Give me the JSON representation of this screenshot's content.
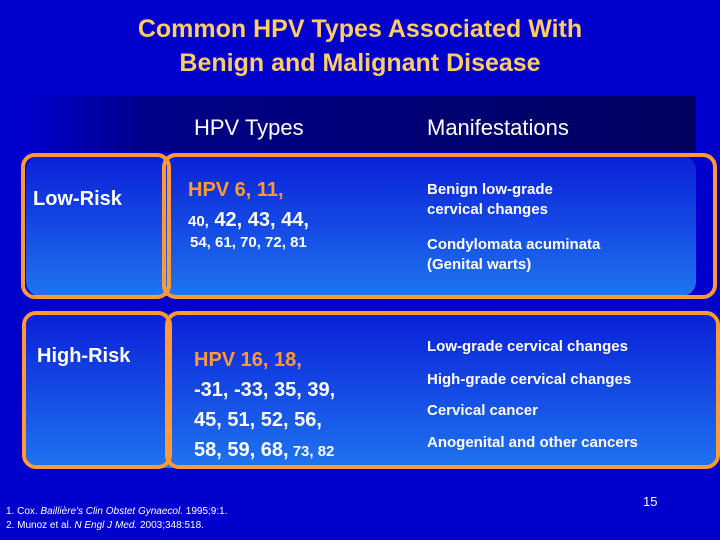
{
  "slide": {
    "title_line1": "Common HPV Types Associated With",
    "title_line2": "Benign and Malignant Disease",
    "page_number": "15"
  },
  "table": {
    "col_types": "HPV Types",
    "col_manifestations": "Manifestations",
    "low_risk": {
      "label": "Low-Risk",
      "types_line1": "HPV  6, 11,",
      "types_line2_a": "40,",
      "types_line2_b": " 42, 43, 44,",
      "types_line3": "54, 61, 70, 72, 81",
      "manif1_line1": "Benign low-grade",
      "manif1_line2": "cervical changes",
      "manif2_line1": "Condylomata acuminata",
      "manif2_line2": "(Genital warts)"
    },
    "high_risk": {
      "label": "High-Risk",
      "types_line1": "HPV 16, 18,",
      "types_line2": "-31, -33, 35, 39,",
      "types_line3": "45, 51, 52, 56,",
      "types_line4_a": "58, 59, 68,",
      "types_line4_b": " 73, 82",
      "manif1": "Low-grade cervical changes",
      "manif2": "High-grade cervical changes",
      "manif3": "Cervical cancer",
      "manif4": "Anogenital and other cancers"
    }
  },
  "references": {
    "ref1_prefix": "1. Cox. ",
    "ref1_journal": "Baillière's Clin Obstet Gynaecol.",
    "ref1_suffix": " 1995;9:1.",
    "ref2_prefix": "2. Munoz et al. ",
    "ref2_journal": "N Engl J Med.",
    "ref2_suffix": " 2003;348:518."
  },
  "colors": {
    "background": "#0000cc",
    "title": "#ffcc66",
    "frame": "#ff9933"
  }
}
